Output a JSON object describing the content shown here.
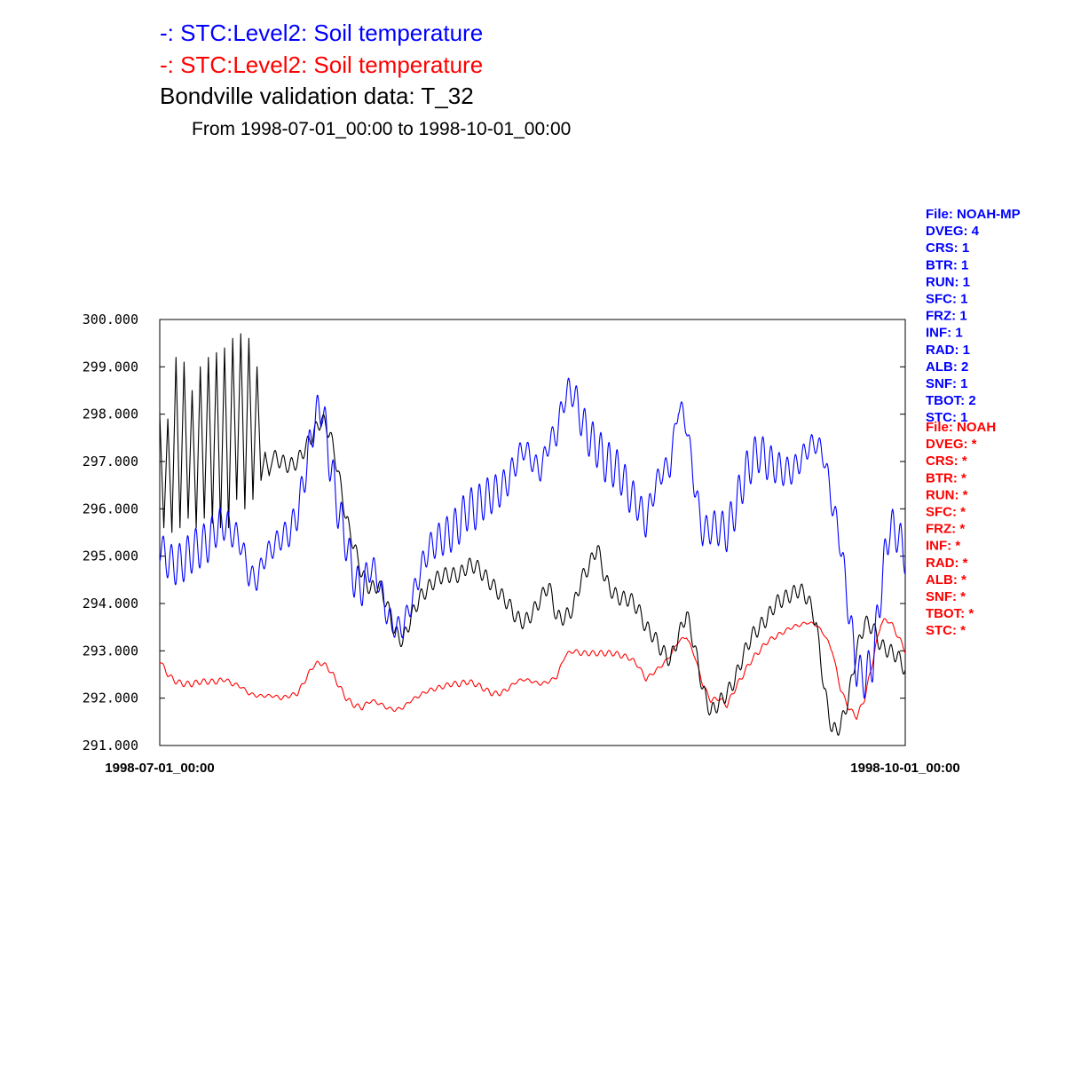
{
  "header": {
    "series1_title": "-:  STC:Level2: Soil temperature",
    "series2_title": "-:  STC:Level2: Soil temperature",
    "validation_title": "Bondville validation data:  T_32",
    "date_range": "From 1998-07-01_00:00 to 1998-10-01_00:00"
  },
  "colors": {
    "noah_mp": "#0000ff",
    "noah": "#ff0000",
    "observed": "#000000"
  },
  "metadata": {
    "noah_mp": [
      "File: NOAH-MP",
      "DVEG: 4",
      "CRS: 1",
      "BTR: 1",
      "RUN: 1",
      "SFC: 1",
      "FRZ: 1",
      "INF: 1",
      "RAD: 1",
      "ALB: 2",
      "SNF: 1",
      "TBOT: 2",
      "STC: 1"
    ],
    "noah": [
      "File: NOAH",
      "DVEG: *",
      "CRS: *",
      "BTR: *",
      "RUN: *",
      "SFC: *",
      "FRZ: *",
      "INF: *",
      "RAD: *",
      "ALB: *",
      "SNF: *",
      "TBOT: *",
      "STC: *"
    ]
  },
  "chart_data": {
    "type": "line",
    "x_unit": "days since 1998-07-01_00:00",
    "xlim": [
      0,
      92
    ],
    "ylim": [
      291.0,
      300.0
    ],
    "yticks": [
      "300.000",
      "299.000",
      "298.000",
      "297.000",
      "296.000",
      "295.000",
      "294.000",
      "293.000",
      "292.000",
      "291.000"
    ],
    "ytick_values": [
      300,
      299,
      298,
      297,
      296,
      295,
      294,
      293,
      292,
      291
    ],
    "xticks": [
      "1998-07-01_00:00",
      "1998-10-01_00:00"
    ],
    "xtick_values": [
      0,
      92
    ],
    "grid": false,
    "series": [
      {
        "name": "STC:Level2: Soil temperature",
        "color": "#0000ff",
        "diurnal_amplitude": 0.45,
        "x": [
          0,
          1,
          2,
          3,
          4,
          5,
          6,
          7,
          8,
          9,
          10,
          11,
          12,
          13,
          14,
          15,
          16,
          17,
          18,
          19,
          20,
          21,
          22,
          23,
          24,
          25,
          26,
          27,
          28,
          29,
          30,
          31,
          32,
          33,
          34,
          35,
          36,
          37,
          38,
          39,
          40,
          41,
          42,
          43,
          44,
          45,
          46,
          47,
          48,
          49,
          50,
          51,
          52,
          53,
          54,
          55,
          56,
          57,
          58,
          59,
          60,
          61,
          62,
          63,
          64,
          65,
          66,
          67,
          68,
          69,
          70,
          71,
          72,
          73,
          74,
          75,
          76,
          77,
          78,
          79,
          80,
          81,
          82,
          83,
          84,
          85,
          86,
          87,
          88,
          89,
          90,
          91,
          92
        ],
        "y": [
          295.2,
          294.9,
          294.8,
          294.9,
          295.1,
          295.2,
          295.3,
          295.6,
          295.7,
          295.5,
          295.3,
          294.6,
          294.5,
          295.0,
          295.2,
          295.4,
          295.5,
          295.9,
          296.8,
          297.8,
          298.2,
          297.0,
          296.0,
          295.3,
          294.5,
          294.3,
          294.8,
          294.5,
          293.8,
          293.5,
          293.5,
          294.0,
          294.6,
          295.1,
          295.3,
          295.4,
          295.5,
          295.7,
          296.0,
          296.0,
          296.2,
          296.3,
          296.4,
          296.6,
          297.0,
          297.3,
          297.0,
          296.8,
          297.4,
          297.6,
          298.4,
          298.5,
          297.9,
          297.5,
          297.3,
          297.0,
          296.9,
          296.7,
          296.3,
          296.1,
          295.7,
          296.4,
          296.8,
          296.9,
          298.2,
          297.8,
          296.5,
          295.5,
          295.6,
          295.6,
          295.5,
          296.0,
          296.6,
          297.0,
          297.2,
          297.0,
          296.9,
          296.8,
          296.8,
          297.0,
          297.3,
          297.4,
          297.1,
          296.1,
          295.3,
          293.9,
          292.6,
          292.4,
          292.8,
          294.3,
          295.6,
          295.5,
          295.0
        ]
      },
      {
        "name": "STC:Level2: Soil temperature",
        "color": "#ff0000",
        "diurnal_amplitude": 0.06,
        "x": [
          0,
          1,
          2,
          3,
          4,
          5,
          6,
          7,
          8,
          9,
          10,
          11,
          12,
          13,
          14,
          15,
          16,
          17,
          18,
          19,
          20,
          21,
          22,
          23,
          24,
          25,
          26,
          27,
          28,
          29,
          30,
          31,
          32,
          33,
          34,
          35,
          36,
          37,
          38,
          39,
          40,
          41,
          42,
          43,
          44,
          45,
          46,
          47,
          48,
          49,
          50,
          51,
          52,
          53,
          54,
          55,
          56,
          57,
          58,
          59,
          60,
          61,
          62,
          63,
          64,
          65,
          66,
          67,
          68,
          69,
          70,
          71,
          72,
          73,
          74,
          75,
          76,
          77,
          78,
          79,
          80,
          81,
          82,
          83,
          84,
          85,
          86,
          87,
          88,
          89,
          90,
          91,
          92
        ],
        "y": [
          292.8,
          292.5,
          292.35,
          292.3,
          292.3,
          292.35,
          292.35,
          292.35,
          292.4,
          292.3,
          292.25,
          292.1,
          292.05,
          292.05,
          292.05,
          292.0,
          292.05,
          292.1,
          292.4,
          292.7,
          292.75,
          292.6,
          292.3,
          292.0,
          291.85,
          291.8,
          291.95,
          291.9,
          291.8,
          291.75,
          291.8,
          291.95,
          292.05,
          292.15,
          292.2,
          292.25,
          292.3,
          292.3,
          292.35,
          292.3,
          292.2,
          292.1,
          292.1,
          292.2,
          292.35,
          292.4,
          292.35,
          292.3,
          292.35,
          292.45,
          292.9,
          293.0,
          292.95,
          292.95,
          292.95,
          292.95,
          292.95,
          292.9,
          292.85,
          292.7,
          292.4,
          292.55,
          292.7,
          292.9,
          293.2,
          293.3,
          292.9,
          292.3,
          291.95,
          292.0,
          291.85,
          292.2,
          292.5,
          292.8,
          293.0,
          293.2,
          293.3,
          293.4,
          293.5,
          293.55,
          293.6,
          293.55,
          293.35,
          293.0,
          292.2,
          291.8,
          291.6,
          292.0,
          292.8,
          293.6,
          293.65,
          293.35,
          293.0
        ]
      },
      {
        "name": "Bondville validation data:  T_32",
        "color": "#000000",
        "x": [
          0,
          0.5,
          1,
          1.5,
          2,
          2.5,
          3,
          3.5,
          4,
          4.5,
          5,
          5.5,
          6,
          6.5,
          7,
          7.5,
          8,
          8.5,
          9,
          9.5,
          10,
          10.5,
          11,
          11.5,
          12,
          12.5,
          13,
          13.5,
          14,
          15,
          16,
          17,
          18,
          19,
          20,
          21,
          22,
          23,
          24,
          25,
          26,
          27,
          28,
          29,
          30,
          31,
          32,
          33,
          34,
          35,
          36,
          37,
          38,
          39,
          40,
          41,
          42,
          43,
          44,
          45,
          46,
          47,
          48,
          49,
          50,
          51,
          52,
          53,
          54,
          55,
          56,
          57,
          58,
          59,
          60,
          61,
          62,
          63,
          64,
          65,
          66,
          67,
          68,
          69,
          70,
          71,
          72,
          73,
          74,
          75,
          76,
          77,
          78,
          79,
          80,
          81,
          82,
          83,
          84,
          85,
          86,
          87,
          88,
          89,
          90,
          91,
          92
        ],
        "y": [
          298.0,
          295.6,
          297.9,
          295.5,
          299.2,
          295.6,
          299.1,
          295.8,
          298.5,
          295.6,
          299.0,
          295.8,
          299.2,
          295.7,
          299.3,
          295.6,
          299.4,
          295.6,
          299.6,
          296.2,
          299.7,
          296.0,
          299.6,
          296.2,
          299.0,
          296.6,
          297.2,
          296.7,
          297.1,
          297.0,
          296.9,
          297.0,
          297.3,
          297.6,
          297.9,
          297.6,
          296.8,
          295.8,
          295.2,
          294.6,
          294.3,
          294.4,
          294.0,
          293.4,
          293.2,
          293.7,
          294.1,
          294.3,
          294.5,
          294.6,
          294.6,
          294.6,
          294.8,
          294.8,
          294.6,
          294.4,
          294.2,
          294.0,
          293.7,
          293.6,
          293.8,
          294.1,
          294.4,
          293.7,
          293.7,
          293.9,
          294.5,
          294.8,
          295.2,
          294.5,
          294.2,
          294.1,
          294.1,
          293.9,
          293.5,
          293.3,
          293.0,
          292.8,
          293.3,
          293.8,
          293.1,
          292.2,
          291.7,
          291.9,
          292.1,
          292.4,
          292.9,
          293.3,
          293.5,
          293.7,
          294.0,
          294.1,
          294.2,
          294.3,
          294.1,
          293.6,
          292.2,
          291.3,
          291.4,
          292.0,
          293.0,
          293.6,
          293.5,
          293.1,
          293.0,
          292.9,
          292.6
        ]
      }
    ]
  }
}
